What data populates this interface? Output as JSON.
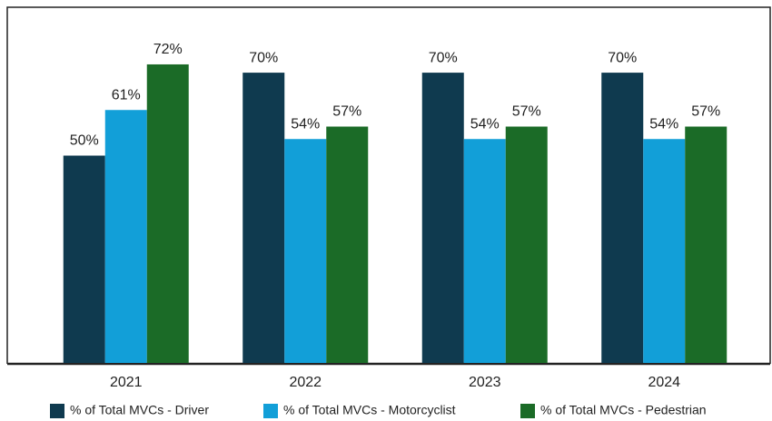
{
  "chart_data": {
    "type": "bar",
    "categories": [
      "2021",
      "2022",
      "2023",
      "2024"
    ],
    "series": [
      {
        "name": "% of Total MVCs - Driver",
        "color": "#0f3a4f",
        "values": [
          50,
          70,
          70,
          70
        ],
        "value_labels": [
          "50%",
          "70%",
          "70%",
          "70%"
        ]
      },
      {
        "name": "% of Total MVCs - Motorcyclist",
        "color": "#129fd8",
        "values": [
          61,
          54,
          54,
          54
        ],
        "value_labels": [
          "61%",
          "54%",
          "54%",
          "54%"
        ]
      },
      {
        "name": "% of Total MVCs - Pedestrian",
        "color": "#1b6b27",
        "values": [
          72,
          57,
          57,
          57
        ],
        "value_labels": [
          "72%",
          "57%",
          "57%",
          "57%"
        ]
      }
    ],
    "legend": "bottom"
  }
}
